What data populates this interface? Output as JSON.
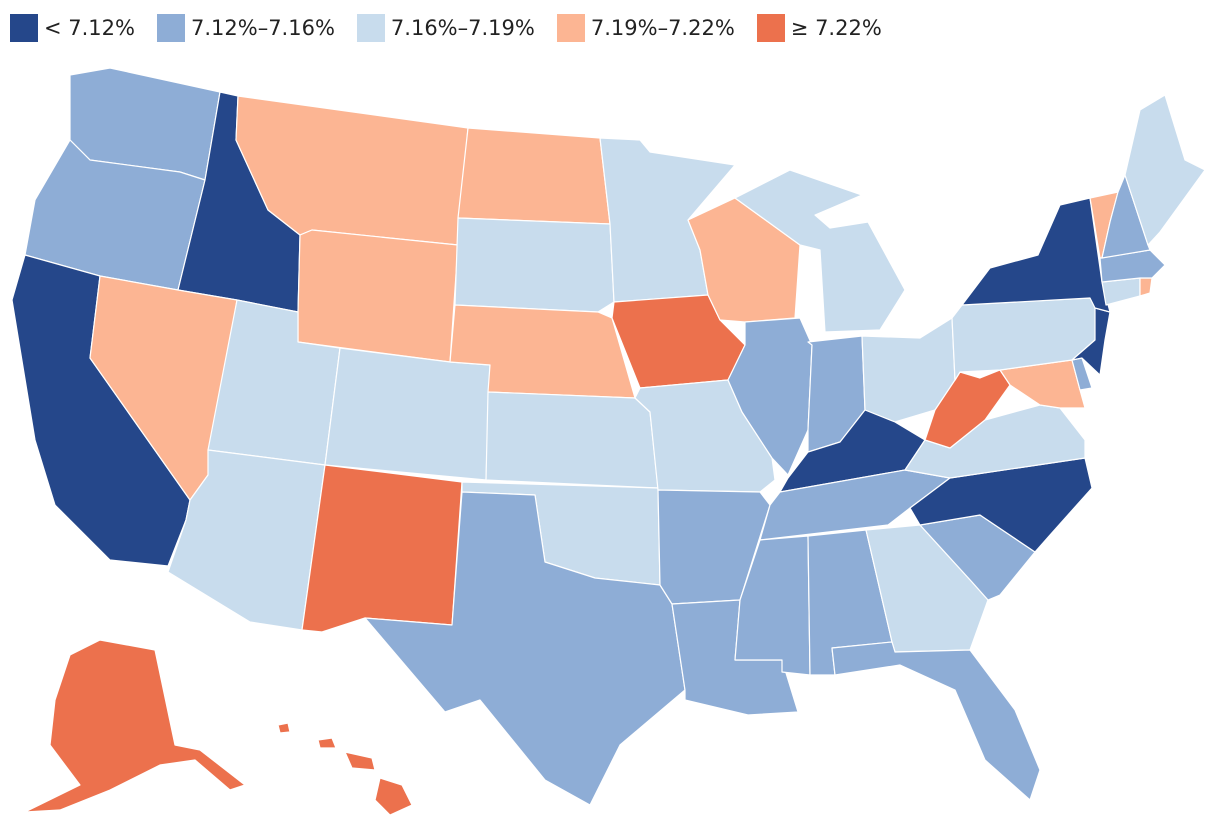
{
  "legend": [
    {
      "label": "< 7.12%",
      "color": "#25478a",
      "bin": "b1"
    },
    {
      "label": "7.12%–7.16%",
      "color": "#8eadd6",
      "bin": "b2"
    },
    {
      "label": "7.16%–7.19%",
      "color": "#c8dced",
      "bin": "b3"
    },
    {
      "label": "7.19%–7.22%",
      "color": "#fcb593",
      "bin": "b4"
    },
    {
      "label": "≥ 7.22%",
      "color": "#ec714d",
      "bin": "b5"
    }
  ],
  "states": {
    "WA": "b2",
    "OR": "b2",
    "CA": "b1",
    "ID": "b1",
    "NV": "b4",
    "MT": "b4",
    "WY": "b4",
    "UT": "b3",
    "AZ": "b3",
    "CO": "b3",
    "NM": "b5",
    "ND": "b4",
    "SD": "b3",
    "NE": "b4",
    "KS": "b3",
    "OK": "b3",
    "TX": "b2",
    "MN": "b3",
    "IA": "b5",
    "MO": "b3",
    "AR": "b2",
    "LA": "b2",
    "WI": "b4",
    "IL": "b2",
    "MI": "b3",
    "IN": "b2",
    "OH": "b3",
    "KY": "b1",
    "TN": "b2",
    "MS": "b2",
    "AL": "b2",
    "GA": "b3",
    "FL": "b2",
    "SC": "b2",
    "NC": "b1",
    "VA": "b3",
    "WV": "b5",
    "MD": "b4",
    "DE": "b2",
    "PA": "b3",
    "NJ": "b1",
    "NY": "b1",
    "CT": "b3",
    "RI": "b4",
    "MA": "b2",
    "VT": "b4",
    "NH": "b2",
    "ME": "b3",
    "AK": "b5",
    "HI": "b5"
  }
}
